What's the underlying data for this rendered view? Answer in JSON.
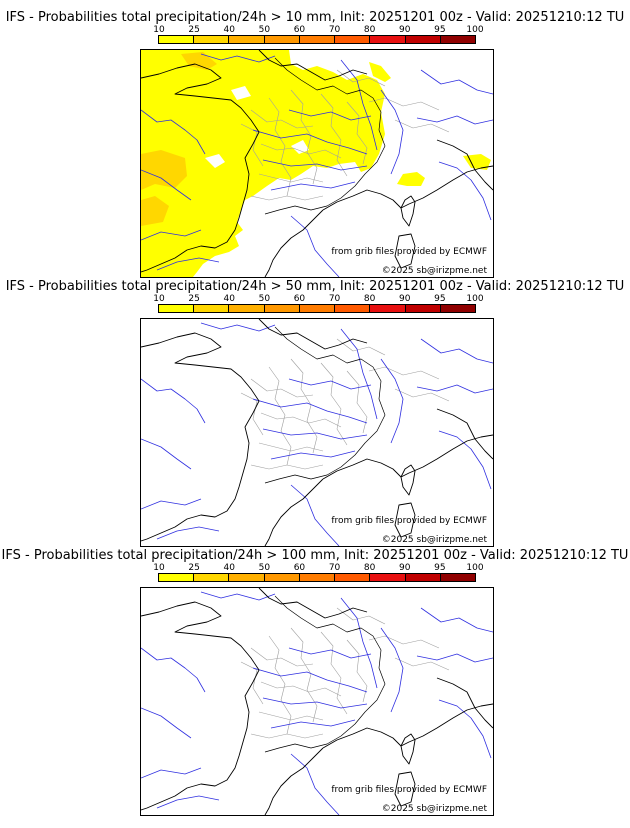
{
  "panels": [
    {
      "title": "IFS - Probabilities total precipitation/24h > 10 mm, Init: 20251201 00z - Valid: 20251210:12 TU",
      "has_precip": true
    },
    {
      "title": "IFS - Probabilities total precipitation/24h > 50 mm, Init: 20251201 00z - Valid: 20251210:12 TU",
      "has_precip": false
    },
    {
      "title": "IFS - Probabilities total precipitation/24h > 100 mm, Init: 20251201 00z - Valid: 20251210:12 TU",
      "has_precip": false
    }
  ],
  "scale": {
    "labels": [
      "10",
      "25",
      "40",
      "50",
      "60",
      "70",
      "80",
      "90",
      "95",
      "100"
    ],
    "colors": [
      "#ffff00",
      "#ffd700",
      "#ffb000",
      "#ff9800",
      "#ff7c00",
      "#ff5a00",
      "#e81010",
      "#c00000",
      "#900000",
      "#5a0000"
    ]
  },
  "credits": {
    "source": "from grib files provided by ECMWF",
    "copyright": "©2025 sb@irizpme.net"
  },
  "map_colors": {
    "coast": "#000000",
    "rivers": "#3030e0",
    "borders": "#a0a0a0",
    "precip_main": "#ffff00",
    "precip_mid": "#ffd700"
  }
}
